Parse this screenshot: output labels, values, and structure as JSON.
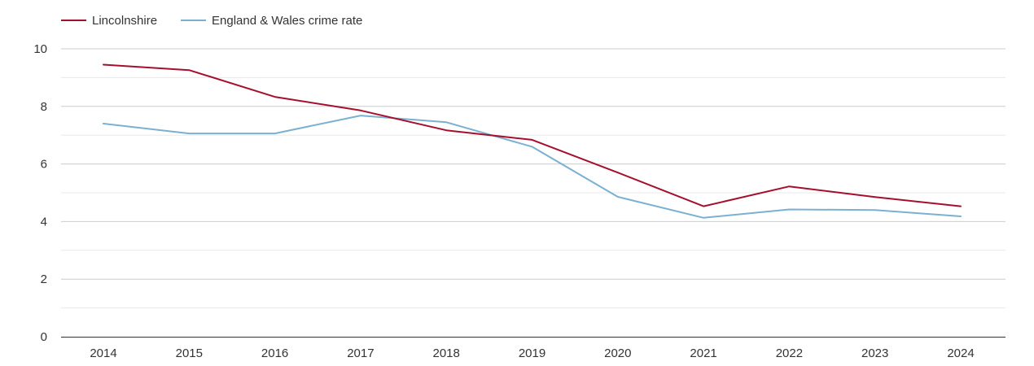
{
  "chart_data": {
    "type": "line",
    "title": "",
    "xlabel": "",
    "ylabel": "",
    "categories": [
      "2014",
      "2015",
      "2016",
      "2017",
      "2018",
      "2019",
      "2020",
      "2021",
      "2022",
      "2023",
      "2024"
    ],
    "ylim": [
      0,
      10
    ],
    "yticks": [
      0,
      2,
      4,
      6,
      8,
      10
    ],
    "grid": true,
    "legend_position": "top-left",
    "series": [
      {
        "name": "Lincolnshire",
        "color": "#a50f2d",
        "values": [
          9.45,
          9.26,
          8.33,
          7.86,
          7.17,
          6.84,
          5.7,
          4.53,
          5.22,
          4.85,
          4.53
        ]
      },
      {
        "name": "England & Wales crime rate",
        "color": "#7ab0d0",
        "values": [
          7.4,
          7.06,
          7.06,
          7.68,
          7.45,
          6.6,
          4.86,
          4.13,
          4.42,
          4.4,
          4.18
        ]
      }
    ]
  }
}
